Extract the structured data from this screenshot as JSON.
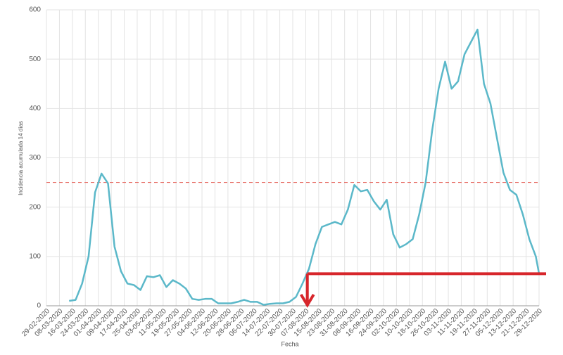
{
  "chart_data": {
    "type": "line",
    "y_label": "Incidencia acumulada 14 días",
    "x_label": "Fecha",
    "x": [
      "14-03-2020",
      "18-03-2020",
      "22-03-2020",
      "26-03-2020",
      "30-03-2020",
      "03-04-2020",
      "07-04-2020",
      "11-04-2020",
      "15-04-2020",
      "19-04-2020",
      "23-04-2020",
      "27-04-2020",
      "01-05-2020",
      "05-05-2020",
      "09-05-2020",
      "13-05-2020",
      "17-05-2020",
      "21-05-2020",
      "25-05-2020",
      "29-05-2020",
      "02-06-2020",
      "06-06-2020",
      "10-06-2020",
      "14-06-2020",
      "18-06-2020",
      "22-06-2020",
      "26-06-2020",
      "30-06-2020",
      "04-07-2020",
      "08-07-2020",
      "12-07-2020",
      "16-07-2020",
      "20-07-2020",
      "24-07-2020",
      "28-07-2020",
      "01-08-2020",
      "05-08-2020",
      "09-08-2020",
      "13-08-2020",
      "17-08-2020",
      "21-08-2020",
      "25-08-2020",
      "29-08-2020",
      "02-09-2020",
      "06-09-2020",
      "10-09-2020",
      "14-09-2020",
      "18-09-2020",
      "22-09-2020",
      "26-09-2020",
      "30-09-2020",
      "04-10-2020",
      "08-10-2020",
      "12-10-2020",
      "16-10-2020",
      "20-10-2020",
      "24-10-2020",
      "28-10-2020",
      "01-11-2020",
      "05-11-2020",
      "09-11-2020",
      "13-11-2020",
      "17-11-2020",
      "21-11-2020",
      "25-11-2020",
      "29-11-2020",
      "03-12-2020",
      "07-12-2020",
      "11-12-2020",
      "15-12-2020",
      "19-12-2020",
      "23-12-2020",
      "27-12-2020",
      "29-12-2020"
    ],
    "series": [
      {
        "color": "#5bb8c9",
        "values": [
          10,
          12,
          45,
          100,
          230,
          268,
          248,
          120,
          70,
          45,
          42,
          32,
          60,
          58,
          62,
          38,
          52,
          45,
          35,
          14,
          12,
          14,
          14,
          5,
          5,
          5,
          8,
          12,
          8,
          8,
          2,
          4,
          5,
          5,
          8,
          18,
          45,
          75,
          125,
          160,
          165,
          170,
          165,
          195,
          245,
          232,
          235,
          212,
          195,
          215,
          145,
          118,
          125,
          135,
          185,
          250,
          355,
          440,
          495,
          440,
          455,
          510,
          535,
          560,
          450,
          410,
          340,
          270,
          235,
          225,
          185,
          135,
          100,
          65
        ]
      }
    ],
    "xlim": [
      "29-02-2020",
      "29-12-2020"
    ],
    "xticks": [
      "29-02-2020",
      "08-03-2020",
      "16-03-2020",
      "24-03-2020",
      "01-04-2020",
      "09-04-2020",
      "17-04-2020",
      "25-04-2020",
      "03-05-2020",
      "11-05-2020",
      "19-05-2020",
      "27-05-2020",
      "04-06-2020",
      "12-06-2020",
      "20-06-2020",
      "28-06-2020",
      "06-07-2020",
      "14-07-2020",
      "22-07-2020",
      "30-07-2020",
      "07-08-2020",
      "15-08-2020",
      "23-08-2020",
      "31-08-2020",
      "08-09-2020",
      "16-09-2020",
      "24-09-2020",
      "02-10-2020",
      "10-10-2020",
      "18-10-2020",
      "26-10-2020",
      "03-11-2020",
      "11-11-2020",
      "19-11-2020",
      "27-11-2020",
      "05-12-2020",
      "13-12-2020",
      "21-12-2020",
      "29-12-2020"
    ],
    "ylim": [
      0,
      600
    ],
    "yticks": [
      0,
      100,
      200,
      300,
      400,
      500,
      600
    ],
    "grid": true,
    "reference_line": {
      "value": 250,
      "color": "#e8736b"
    },
    "highlight": {
      "value": 65,
      "x": "08-08-2020",
      "color": "#d7262b"
    }
  }
}
